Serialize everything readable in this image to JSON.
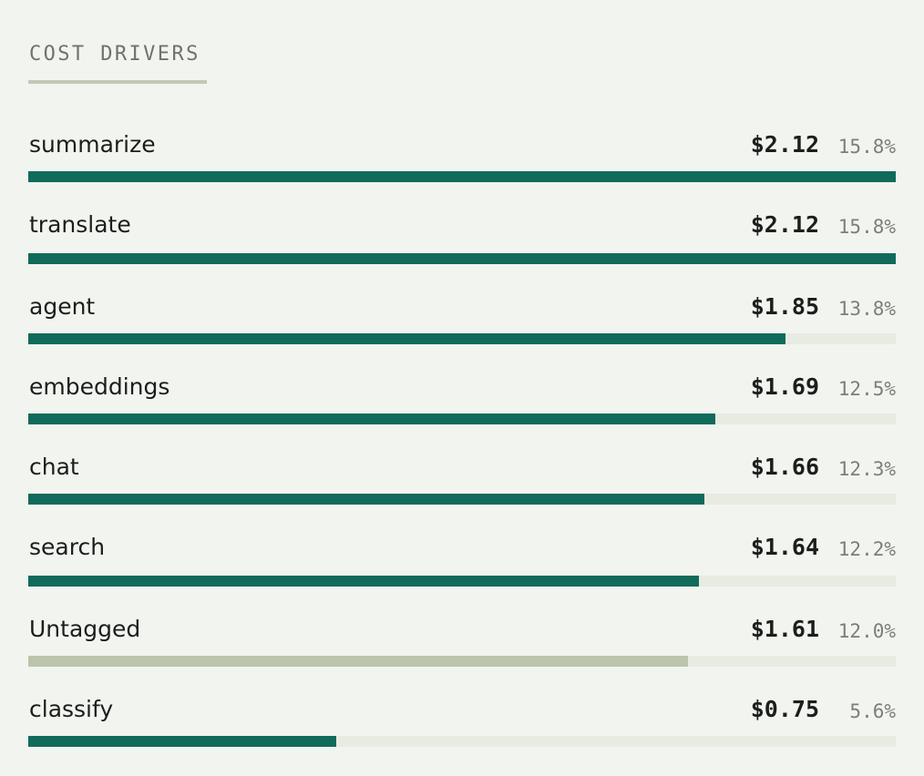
{
  "section": {
    "title": "COST DRIVERS"
  },
  "colors": {
    "bar_accent": "#106b5a",
    "bar_neutral": "#bcc4ad",
    "track": "#e8ebe1",
    "background": "#f2f4ef"
  },
  "drivers": [
    {
      "name": "summarize",
      "cost": "$2.12",
      "percent": "15.8%",
      "share_of_max": 1.0,
      "tone": "accent"
    },
    {
      "name": "translate",
      "cost": "$2.12",
      "percent": "15.8%",
      "share_of_max": 1.0,
      "tone": "accent"
    },
    {
      "name": "agent",
      "cost": "$1.85",
      "percent": "13.8%",
      "share_of_max": 0.873,
      "tone": "accent"
    },
    {
      "name": "embeddings",
      "cost": "$1.69",
      "percent": "12.5%",
      "share_of_max": 0.792,
      "tone": "accent"
    },
    {
      "name": "chat",
      "cost": "$1.66",
      "percent": "12.3%",
      "share_of_max": 0.779,
      "tone": "accent"
    },
    {
      "name": "search",
      "cost": "$1.64",
      "percent": "12.2%",
      "share_of_max": 0.773,
      "tone": "accent"
    },
    {
      "name": "Untagged",
      "cost": "$1.61",
      "percent": "12.0%",
      "share_of_max": 0.76,
      "tone": "neutral"
    },
    {
      "name": "classify",
      "cost": "$0.75",
      "percent": "5.6%",
      "share_of_max": 0.355,
      "tone": "accent"
    }
  ]
}
